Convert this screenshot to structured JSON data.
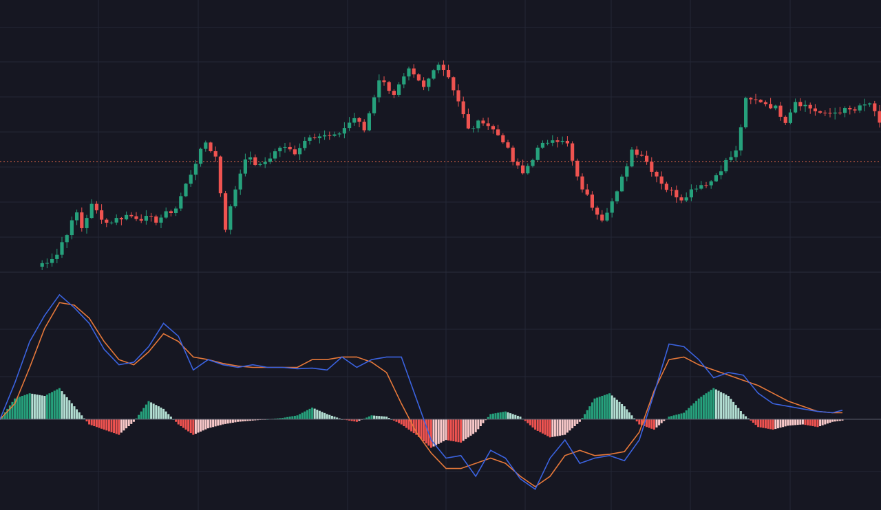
{
  "chart_data": [
    {
      "type": "candlestick",
      "title": "",
      "xlabel": "",
      "ylabel": "",
      "grid": true,
      "axis_labels_visible": false,
      "ylim": [
        0,
        100
      ],
      "price_line": 45,
      "anchors": [
        [
          0,
          2
        ],
        [
          4,
          7
        ],
        [
          5,
          12
        ],
        [
          8,
          24
        ],
        [
          9,
          18
        ],
        [
          11,
          27
        ],
        [
          14,
          20
        ],
        [
          18,
          23
        ],
        [
          24,
          21
        ],
        [
          28,
          26
        ],
        [
          32,
          45
        ],
        [
          34,
          53
        ],
        [
          36,
          47
        ],
        [
          38,
          18
        ],
        [
          40,
          34
        ],
        [
          42,
          47
        ],
        [
          45,
          43
        ],
        [
          49,
          51
        ],
        [
          52,
          49
        ],
        [
          55,
          56
        ],
        [
          60,
          55
        ],
        [
          64,
          63
        ],
        [
          66,
          58
        ],
        [
          69,
          79
        ],
        [
          72,
          73
        ],
        [
          75,
          82
        ],
        [
          78,
          75
        ],
        [
          81,
          86
        ],
        [
          83,
          80
        ],
        [
          85,
          70
        ],
        [
          87,
          58
        ],
        [
          90,
          62
        ],
        [
          94,
          54
        ],
        [
          96,
          45
        ],
        [
          98,
          40
        ],
        [
          101,
          50
        ],
        [
          104,
          55
        ],
        [
          107,
          52
        ],
        [
          109,
          38
        ],
        [
          112,
          27
        ],
        [
          114,
          22
        ],
        [
          117,
          32
        ],
        [
          120,
          50
        ],
        [
          122,
          48
        ],
        [
          124,
          42
        ],
        [
          127,
          34
        ],
        [
          130,
          30
        ],
        [
          133,
          35
        ],
        [
          136,
          37
        ],
        [
          139,
          45
        ],
        [
          141,
          49
        ],
        [
          143,
          70
        ],
        [
          146,
          70
        ],
        [
          149,
          67
        ],
        [
          151,
          62
        ],
        [
          153,
          70
        ],
        [
          156,
          67
        ],
        [
          159,
          64
        ],
        [
          162,
          66
        ],
        [
          165,
          66
        ],
        [
          168,
          69
        ],
        [
          170,
          60
        ]
      ],
      "series": [
        {
          "name": "",
          "role": "price",
          "up_color": "#26a17c",
          "down_color": "#ef5350"
        }
      ]
    },
    {
      "type": "line",
      "title": "",
      "xlabel": "",
      "ylabel": "",
      "grid": true,
      "zero_line": 0,
      "ylim": [
        -3.5,
        5.3
      ],
      "x": [
        0,
        3,
        6,
        9,
        12,
        15,
        18,
        21,
        24,
        27,
        30,
        33,
        36,
        39,
        42,
        45,
        48,
        51,
        54,
        57,
        60,
        63,
        66,
        69,
        72,
        75,
        78,
        81,
        84,
        87,
        90,
        93,
        96,
        99,
        102,
        105,
        108,
        111,
        114,
        117,
        120,
        123,
        126,
        129,
        132,
        135,
        138,
        141,
        144,
        147,
        150,
        153,
        156,
        159,
        162,
        165,
        168,
        170
      ],
      "series": [
        {
          "name": "",
          "role": "macd",
          "color": "#3b63e0",
          "values": [
            0,
            1.4,
            3.0,
            4.0,
            4.8,
            4.3,
            3.7,
            2.7,
            2.1,
            2.2,
            2.8,
            3.7,
            3.2,
            1.9,
            2.3,
            2.1,
            2.0,
            2.1,
            2.0,
            2.0,
            1.95,
            1.97,
            1.9,
            2.4,
            2.0,
            2.3,
            2.4,
            2.4,
            0.8,
            -0.8,
            -1.5,
            -1.4,
            -2.2,
            -1.2,
            -1.5,
            -2.3,
            -2.7,
            -1.5,
            -0.8,
            -1.7,
            -1.5,
            -1.4,
            -1.6,
            -0.8,
            1.0,
            2.9,
            2.8,
            2.3,
            1.6,
            1.8,
            1.7,
            1.0,
            0.6,
            0.5,
            0.4,
            0.3,
            0.25,
            0.35
          ]
        },
        {
          "name": "",
          "role": "signal",
          "color": "#e8793a",
          "values": [
            0,
            0.6,
            2.0,
            3.5,
            4.5,
            4.4,
            3.9,
            3.0,
            2.3,
            2.1,
            2.6,
            3.3,
            3.0,
            2.4,
            2.3,
            2.15,
            2.05,
            2.0,
            2.0,
            2.0,
            2.0,
            2.3,
            2.3,
            2.4,
            2.4,
            2.2,
            1.8,
            0.6,
            -0.5,
            -1.3,
            -1.9,
            -1.9,
            -1.7,
            -1.5,
            -1.7,
            -2.2,
            -2.6,
            -2.2,
            -1.4,
            -1.2,
            -1.4,
            -1.35,
            -1.25,
            -0.5,
            1.1,
            2.3,
            2.4,
            2.1,
            1.9,
            1.7,
            1.5,
            1.3,
            1.0,
            0.7,
            0.5,
            0.3,
            0.25,
            0.25
          ]
        },
        {
          "name": "",
          "role": "histogram",
          "type": "bar",
          "colors": {
            "pos_growing": "#26a17c",
            "pos_falling": "#b3dfd3",
            "neg_growing": "#ef5350",
            "neg_falling": "#f9c9c9"
          },
          "values": [
            0,
            0.8,
            1.0,
            0.9,
            1.2,
            0.5,
            -0.2,
            -0.4,
            -0.6,
            -0.1,
            0.7,
            0.4,
            -0.2,
            -0.6,
            -0.35,
            -0.2,
            -0.1,
            -0.05,
            0,
            0.05,
            0.15,
            0.45,
            0.2,
            0,
            -0.1,
            0.15,
            0.1,
            -0.2,
            -0.6,
            -1.1,
            -0.8,
            -0.9,
            -0.5,
            0.2,
            0.3,
            0.1,
            -0.4,
            -0.7,
            -0.6,
            -0.1,
            0.8,
            1.0,
            0.5,
            -0.2,
            -0.4,
            0.1,
            0.25,
            0.8,
            1.2,
            0.9,
            0.2,
            -0.3,
            -0.4,
            -0.25,
            -0.2,
            -0.3,
            -0.1,
            -0.05
          ]
        }
      ]
    }
  ]
}
